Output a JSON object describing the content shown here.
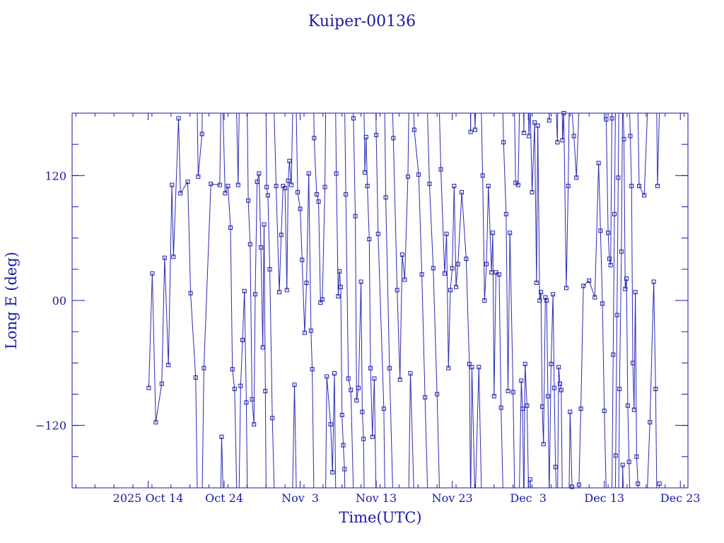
{
  "colors": {
    "ink": "#1a1aa6",
    "line": "#2b2bb5",
    "background": "#ffffff"
  },
  "chart_data": {
    "type": "scatter",
    "title": "Kuiper-00136",
    "xlabel": "Time(UTC)",
    "ylabel": "Long E (deg)",
    "xlim": [
      "2025-10-04",
      "2025-12-24"
    ],
    "ylim": [
      -180,
      180
    ],
    "grid": false,
    "legend": "none",
    "markers": "square",
    "connected": true,
    "x_ticks": [
      {
        "date": "2025-10-14",
        "label": "2025 Oct 14"
      },
      {
        "date": "2025-10-24",
        "label": "Oct 24"
      },
      {
        "date": "2025-11-03",
        "label": "Nov  3"
      },
      {
        "date": "2025-11-13",
        "label": "Nov 13"
      },
      {
        "date": "2025-11-23",
        "label": "Nov 23"
      },
      {
        "date": "2025-12-03",
        "label": "Dec  3"
      },
      {
        "date": "2025-12-13",
        "label": "Dec 13"
      },
      {
        "date": "2025-12-23",
        "label": "Dec 23"
      }
    ],
    "y_ticks": [
      {
        "value": -120,
        "label": "−120"
      },
      {
        "value": 0,
        "label": "00"
      },
      {
        "value": 120,
        "label": "120"
      }
    ],
    "points": [
      {
        "x": "2025-10-14 02:00",
        "y": -84
      },
      {
        "x": "2025-10-14 13:00",
        "y": 26
      },
      {
        "x": "2025-10-15 00:00",
        "y": -117
      },
      {
        "x": "2025-10-15 19:00",
        "y": -80
      },
      {
        "x": "2025-10-16 04:00",
        "y": 41
      },
      {
        "x": "2025-10-16 16:00",
        "y": -62
      },
      {
        "x": "2025-10-17 03:00",
        "y": 111
      },
      {
        "x": "2025-10-17 08:00",
        "y": 42
      },
      {
        "x": "2025-10-18 00:00",
        "y": 175
      },
      {
        "x": "2025-10-18 06:00",
        "y": 103
      },
      {
        "x": "2025-10-19 05:00",
        "y": 114
      },
      {
        "x": "2025-10-19 14:00",
        "y": 7
      },
      {
        "x": "2025-10-20 06:00",
        "y": -74
      },
      {
        "x": "2025-10-20 14:00",
        "y": 119
      },
      {
        "x": "2025-10-21 02:00",
        "y": 160
      },
      {
        "x": "2025-10-21 08:00",
        "y": -65
      },
      {
        "x": "2025-10-22 06:00",
        "y": 112
      },
      {
        "x": "2025-10-23 10:00",
        "y": 111
      },
      {
        "x": "2025-10-23 16:00",
        "y": -131
      },
      {
        "x": "2025-10-24 03:00",
        "y": 103
      },
      {
        "x": "2025-10-24 12:00",
        "y": 110
      },
      {
        "x": "2025-10-24 20:00",
        "y": 70
      },
      {
        "x": "2025-10-25 02:00",
        "y": -66
      },
      {
        "x": "2025-10-25 09:00",
        "y": -85
      },
      {
        "x": "2025-10-25 20:00",
        "y": 111
      },
      {
        "x": "2025-10-26 04:00",
        "y": -82
      },
      {
        "x": "2025-10-26 10:00",
        "y": -38
      },
      {
        "x": "2025-10-26 16:00",
        "y": 9
      },
      {
        "x": "2025-10-26 22:00",
        "y": -98
      },
      {
        "x": "2025-10-27 04:00",
        "y": 96
      },
      {
        "x": "2025-10-27 10:00",
        "y": 54
      },
      {
        "x": "2025-10-27 16:00",
        "y": -95
      },
      {
        "x": "2025-10-27 22:00",
        "y": -119
      },
      {
        "x": "2025-10-28 02:00",
        "y": 6
      },
      {
        "x": "2025-10-28 08:00",
        "y": 114
      },
      {
        "x": "2025-10-28 14:00",
        "y": 122
      },
      {
        "x": "2025-10-28 20:00",
        "y": 51
      },
      {
        "x": "2025-10-29 02:00",
        "y": -45
      },
      {
        "x": "2025-10-29 06:00",
        "y": 73
      },
      {
        "x": "2025-10-29 10:00",
        "y": -87
      },
      {
        "x": "2025-10-29 14:00",
        "y": 109
      },
      {
        "x": "2025-10-29 18:00",
        "y": 101
      },
      {
        "x": "2025-10-30 00:00",
        "y": 30
      },
      {
        "x": "2025-10-30 08:00",
        "y": -113
      },
      {
        "x": "2025-10-30 20:00",
        "y": 110
      },
      {
        "x": "2025-10-31 06:00",
        "y": 8
      },
      {
        "x": "2025-10-31 12:00",
        "y": 63
      },
      {
        "x": "2025-10-31 18:00",
        "y": 110
      },
      {
        "x": "2025-11-01 00:00",
        "y": 108
      },
      {
        "x": "2025-11-01 06:00",
        "y": 10
      },
      {
        "x": "2025-11-01 10:00",
        "y": 115
      },
      {
        "x": "2025-11-01 14:00",
        "y": 134
      },
      {
        "x": "2025-11-01 20:00",
        "y": 111
      },
      {
        "x": "2025-11-02 06:00",
        "y": -81
      },
      {
        "x": "2025-11-02 16:00",
        "y": 104
      },
      {
        "x": "2025-11-03 00:00",
        "y": 88
      },
      {
        "x": "2025-11-03 06:00",
        "y": 39
      },
      {
        "x": "2025-11-03 14:00",
        "y": -31
      },
      {
        "x": "2025-11-03 20:00",
        "y": 17
      },
      {
        "x": "2025-11-04 03:00",
        "y": 122
      },
      {
        "x": "2025-11-04 10:00",
        "y": -29
      },
      {
        "x": "2025-11-04 14:00",
        "y": -66
      },
      {
        "x": "2025-11-04 20:00",
        "y": 156
      },
      {
        "x": "2025-11-05 04:00",
        "y": 102
      },
      {
        "x": "2025-11-05 10:00",
        "y": 95
      },
      {
        "x": "2025-11-05 16:00",
        "y": -2
      },
      {
        "x": "2025-11-05 22:00",
        "y": 1
      },
      {
        "x": "2025-11-06 06:00",
        "y": 109
      },
      {
        "x": "2025-11-06 12:00",
        "y": -73
      },
      {
        "x": "2025-11-07 00:00",
        "y": -119
      },
      {
        "x": "2025-11-07 06:00",
        "y": -165
      },
      {
        "x": "2025-11-07 12:00",
        "y": -70
      },
      {
        "x": "2025-11-07 18:00",
        "y": 122
      },
      {
        "x": "2025-11-08 00:00",
        "y": 4
      },
      {
        "x": "2025-11-08 04:00",
        "y": 28
      },
      {
        "x": "2025-11-08 08:00",
        "y": 13
      },
      {
        "x": "2025-11-08 12:00",
        "y": -110
      },
      {
        "x": "2025-11-08 16:00",
        "y": -139
      },
      {
        "x": "2025-11-08 20:00",
        "y": -162
      },
      {
        "x": "2025-11-09 00:00",
        "y": 102
      },
      {
        "x": "2025-11-09 08:00",
        "y": -75
      },
      {
        "x": "2025-11-09 16:00",
        "y": -86
      },
      {
        "x": "2025-11-10 00:00",
        "y": 175
      },
      {
        "x": "2025-11-10 06:00",
        "y": 81
      },
      {
        "x": "2025-11-10 10:00",
        "y": -96
      },
      {
        "x": "2025-11-10 16:00",
        "y": -84
      },
      {
        "x": "2025-11-11 00:00",
        "y": 18
      },
      {
        "x": "2025-11-11 04:00",
        "y": -107
      },
      {
        "x": "2025-11-11 08:00",
        "y": -133
      },
      {
        "x": "2025-11-11 12:00",
        "y": 123
      },
      {
        "x": "2025-11-11 16:00",
        "y": 157
      },
      {
        "x": "2025-11-11 20:00",
        "y": 110
      },
      {
        "x": "2025-11-12 02:00",
        "y": 59
      },
      {
        "x": "2025-11-12 06:00",
        "y": -65
      },
      {
        "x": "2025-11-12 12:00",
        "y": -131
      },
      {
        "x": "2025-11-12 18:00",
        "y": -75
      },
      {
        "x": "2025-11-13 00:00",
        "y": 159
      },
      {
        "x": "2025-11-13 06:00",
        "y": 64
      },
      {
        "x": "2025-11-14 00:00",
        "y": -104
      },
      {
        "x": "2025-11-14 06:00",
        "y": 99
      },
      {
        "x": "2025-11-14 18:00",
        "y": -65
      },
      {
        "x": "2025-11-15 06:00",
        "y": 156
      },
      {
        "x": "2025-11-15 18:00",
        "y": 10
      },
      {
        "x": "2025-11-16 03:00",
        "y": -76
      },
      {
        "x": "2025-11-16 10:00",
        "y": 44
      },
      {
        "x": "2025-11-16 18:00",
        "y": 20
      },
      {
        "x": "2025-11-17 04:00",
        "y": 119
      },
      {
        "x": "2025-11-17 12:00",
        "y": -70
      },
      {
        "x": "2025-11-18 00:00",
        "y": 164
      },
      {
        "x": "2025-11-18 14:00",
        "y": 121
      },
      {
        "x": "2025-11-19 00:00",
        "y": 25
      },
      {
        "x": "2025-11-19 10:00",
        "y": -93
      },
      {
        "x": "2025-11-20 00:00",
        "y": 112
      },
      {
        "x": "2025-11-20 12:00",
        "y": 31
      },
      {
        "x": "2025-11-21 00:00",
        "y": -90
      },
      {
        "x": "2025-11-21 12:00",
        "y": 126
      },
      {
        "x": "2025-11-22 00:00",
        "y": 26
      },
      {
        "x": "2025-11-22 06:00",
        "y": 64
      },
      {
        "x": "2025-11-22 12:00",
        "y": -65
      },
      {
        "x": "2025-11-22 18:00",
        "y": 10
      },
      {
        "x": "2025-11-23 00:00",
        "y": 31
      },
      {
        "x": "2025-11-23 06:00",
        "y": 110
      },
      {
        "x": "2025-11-23 12:00",
        "y": 13
      },
      {
        "x": "2025-11-23 18:00",
        "y": 35
      },
      {
        "x": "2025-11-24 06:00",
        "y": 104
      },
      {
        "x": "2025-11-24 20:00",
        "y": 40
      },
      {
        "x": "2025-11-25 06:00",
        "y": -61
      },
      {
        "x": "2025-11-25 10:00",
        "y": 162
      },
      {
        "x": "2025-11-25 14:00",
        "y": -64
      },
      {
        "x": "2025-11-26 00:00",
        "y": 164
      },
      {
        "x": "2025-11-26 12:00",
        "y": -64
      },
      {
        "x": "2025-11-27 00:00",
        "y": 120
      },
      {
        "x": "2025-11-27 06:00",
        "y": 0
      },
      {
        "x": "2025-11-27 12:00",
        "y": 35
      },
      {
        "x": "2025-11-27 18:00",
        "y": 110
      },
      {
        "x": "2025-11-28 04:00",
        "y": 27
      },
      {
        "x": "2025-11-28 08:00",
        "y": 65
      },
      {
        "x": "2025-11-28 12:00",
        "y": -92
      },
      {
        "x": "2025-11-28 18:00",
        "y": 27
      },
      {
        "x": "2025-11-29 04:00",
        "y": 25
      },
      {
        "x": "2025-11-29 10:00",
        "y": -103
      },
      {
        "x": "2025-11-29 18:00",
        "y": 152
      },
      {
        "x": "2025-11-30 02:00",
        "y": 83
      },
      {
        "x": "2025-11-30 08:00",
        "y": -87
      },
      {
        "x": "2025-11-30 14:00",
        "y": 65
      },
      {
        "x": "2025-12-01 00:00",
        "y": -88
      },
      {
        "x": "2025-12-01 08:00",
        "y": 113
      },
      {
        "x": "2025-12-01 16:00",
        "y": 111
      },
      {
        "x": "2025-12-02 02:00",
        "y": -77
      },
      {
        "x": "2025-12-02 06:00",
        "y": -104
      },
      {
        "x": "2025-12-02 10:00",
        "y": 161
      },
      {
        "x": "2025-12-02 14:00",
        "y": -61
      },
      {
        "x": "2025-12-02 20:00",
        "y": -101
      },
      {
        "x": "2025-12-03 02:00",
        "y": 158
      },
      {
        "x": "2025-12-03 06:00",
        "y": -172
      },
      {
        "x": "2025-12-03 12:00",
        "y": 104
      },
      {
        "x": "2025-12-03 20:00",
        "y": 171
      },
      {
        "x": "2025-12-04 02:00",
        "y": 17
      },
      {
        "x": "2025-12-04 06:00",
        "y": 168
      },
      {
        "x": "2025-12-04 12:00",
        "y": 0
      },
      {
        "x": "2025-12-04 16:00",
        "y": 8
      },
      {
        "x": "2025-12-04 20:00",
        "y": -102
      },
      {
        "x": "2025-12-05 00:00",
        "y": -138
      },
      {
        "x": "2025-12-05 06:00",
        "y": 3
      },
      {
        "x": "2025-12-05 10:00",
        "y": 0
      },
      {
        "x": "2025-12-05 14:00",
        "y": -92
      },
      {
        "x": "2025-12-05 18:00",
        "y": 173
      },
      {
        "x": "2025-12-06 00:00",
        "y": -61
      },
      {
        "x": "2025-12-06 06:00",
        "y": 6
      },
      {
        "x": "2025-12-06 10:00",
        "y": -84
      },
      {
        "x": "2025-12-06 14:00",
        "y": -160
      },
      {
        "x": "2025-12-06 20:00",
        "y": 152
      },
      {
        "x": "2025-12-07 00:00",
        "y": -64
      },
      {
        "x": "2025-12-07 04:00",
        "y": -80
      },
      {
        "x": "2025-12-07 08:00",
        "y": -86
      },
      {
        "x": "2025-12-07 12:00",
        "y": 154
      },
      {
        "x": "2025-12-07 16:00",
        "y": 180
      },
      {
        "x": "2025-12-08 00:00",
        "y": 12
      },
      {
        "x": "2025-12-08 06:00",
        "y": 110
      },
      {
        "x": "2025-12-08 12:00",
        "y": -107
      },
      {
        "x": "2025-12-08 18:00",
        "y": -179
      },
      {
        "x": "2025-12-09 00:00",
        "y": 158
      },
      {
        "x": "2025-12-09 08:00",
        "y": 118
      },
      {
        "x": "2025-12-09 16:00",
        "y": -177
      },
      {
        "x": "2025-12-09 22:00",
        "y": -104
      },
      {
        "x": "2025-12-10 06:00",
        "y": 14
      },
      {
        "x": "2025-12-11 00:00",
        "y": 19
      },
      {
        "x": "2025-12-11 18:00",
        "y": 3
      },
      {
        "x": "2025-12-12 06:00",
        "y": 132
      },
      {
        "x": "2025-12-12 12:00",
        "y": 67
      },
      {
        "x": "2025-12-12 18:00",
        "y": -3
      },
      {
        "x": "2025-12-13 00:00",
        "y": -106
      },
      {
        "x": "2025-12-13 06:00",
        "y": 174
      },
      {
        "x": "2025-12-13 12:00",
        "y": 65
      },
      {
        "x": "2025-12-13 16:00",
        "y": 40
      },
      {
        "x": "2025-12-13 20:00",
        "y": 34
      },
      {
        "x": "2025-12-14 00:00",
        "y": 175
      },
      {
        "x": "2025-12-14 04:00",
        "y": -52
      },
      {
        "x": "2025-12-14 08:00",
        "y": 83
      },
      {
        "x": "2025-12-14 12:00",
        "y": -149
      },
      {
        "x": "2025-12-14 16:00",
        "y": -14
      },
      {
        "x": "2025-12-14 20:00",
        "y": 118
      },
      {
        "x": "2025-12-15 00:00",
        "y": -85
      },
      {
        "x": "2025-12-15 06:00",
        "y": 47
      },
      {
        "x": "2025-12-15 10:00",
        "y": -158
      },
      {
        "x": "2025-12-15 14:00",
        "y": 155
      },
      {
        "x": "2025-12-15 18:00",
        "y": 11
      },
      {
        "x": "2025-12-15 22:00",
        "y": 21
      },
      {
        "x": "2025-12-16 02:00",
        "y": -101
      },
      {
        "x": "2025-12-16 06:00",
        "y": -155
      },
      {
        "x": "2025-12-16 10:00",
        "y": 158
      },
      {
        "x": "2025-12-16 14:00",
        "y": 110
      },
      {
        "x": "2025-12-16 18:00",
        "y": -60
      },
      {
        "x": "2025-12-16 22:00",
        "y": -105
      },
      {
        "x": "2025-12-17 02:00",
        "y": 8
      },
      {
        "x": "2025-12-17 06:00",
        "y": -150
      },
      {
        "x": "2025-12-17 10:00",
        "y": -176
      },
      {
        "x": "2025-12-17 14:00",
        "y": 110
      },
      {
        "x": "2025-12-18 06:00",
        "y": 101
      },
      {
        "x": "2025-12-19 00:00",
        "y": -117
      },
      {
        "x": "2025-12-19 12:00",
        "y": 18
      },
      {
        "x": "2025-12-19 18:00",
        "y": -85
      },
      {
        "x": "2025-12-20 00:00",
        "y": 110
      },
      {
        "x": "2025-12-20 06:00",
        "y": -176
      }
    ]
  }
}
